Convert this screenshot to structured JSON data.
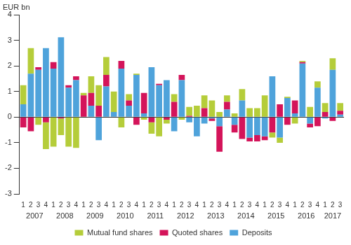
{
  "chart_data": {
    "type": "bar",
    "ylabel": "EUR bn",
    "categories": [
      "1",
      "2",
      "3",
      "4",
      "1",
      "2",
      "3",
      "4",
      "1",
      "2",
      "3",
      "4",
      "1",
      "2",
      "3",
      "4",
      "1",
      "2",
      "3",
      "4",
      "1",
      "2",
      "3",
      "4",
      "1",
      "2",
      "3",
      "4",
      "1",
      "2",
      "3",
      "4",
      "1",
      "2",
      "3",
      "4",
      "1",
      "2",
      "3",
      "4",
      "1",
      "2",
      "3"
    ],
    "groups": [
      {
        "label": "2007",
        "count": 4
      },
      {
        "label": "2008",
        "count": 4
      },
      {
        "label": "2009",
        "count": 4
      },
      {
        "label": "2010",
        "count": 4
      },
      {
        "label": "2011",
        "count": 4
      },
      {
        "label": "2012",
        "count": 4
      },
      {
        "label": "2013",
        "count": 4
      },
      {
        "label": "2014",
        "count": 4
      },
      {
        "label": "2015",
        "count": 4
      },
      {
        "label": "2016",
        "count": 4
      },
      {
        "label": "2017",
        "count": 3
      }
    ],
    "series": [
      {
        "name": "Mutual fund shares",
        "color": "#b5cd3a",
        "values": [
          0.75,
          1.0,
          -0.3,
          -1.05,
          -1.15,
          -0.65,
          -1.15,
          -1.2,
          0.1,
          0.65,
          0.8,
          0.7,
          0.8,
          -0.4,
          0.25,
          0.05,
          -0.1,
          -0.45,
          -0.75,
          -0.15,
          0.3,
          -0.1,
          0.35,
          0.45,
          0.5,
          0.65,
          0.2,
          0.25,
          0.15,
          0.45,
          0.35,
          0.35,
          0.85,
          -0.2,
          -0.2,
          0.05,
          -0.25,
          0.05,
          0.4,
          0.25,
          0.35,
          0.45,
          0.3
        ]
      },
      {
        "name": "Quoted shares",
        "color": "#d4145a",
        "values": [
          -0.4,
          -0.55,
          0.1,
          -0.2,
          0.25,
          -0.05,
          0.1,
          0.15,
          0.85,
          0.5,
          0.45,
          0.45,
          0,
          0.3,
          0.2,
          -0.3,
          0.8,
          -0.2,
          0.05,
          -0.1,
          0.6,
          0.2,
          0.05,
          0,
          0.35,
          -0.1,
          -1.0,
          0.3,
          -0.3,
          -0.85,
          -0.15,
          -0.25,
          -0.15,
          -0.6,
          0.5,
          -0.3,
          0.5,
          0.05,
          -0.15,
          -0.35,
          0.2,
          -0.15,
          0.15
        ]
      },
      {
        "name": "Deposits",
        "color": "#4fa3db",
        "values": [
          0.5,
          1.7,
          1.85,
          2.7,
          1.9,
          3.12,
          1.15,
          1.45,
          0,
          0.45,
          -0.9,
          1.2,
          0.2,
          1.9,
          0.45,
          1.65,
          0.15,
          1.95,
          1.25,
          1.45,
          -0.55,
          1.45,
          -0.2,
          -0.75,
          -0.25,
          -0.05,
          -0.35,
          0.3,
          -0.3,
          0.65,
          -0.8,
          -0.7,
          -0.75,
          1.6,
          -0.8,
          0.75,
          0.15,
          2.1,
          -0.25,
          1.15,
          -0.05,
          1.85,
          0.1
        ]
      }
    ],
    "stacked": true,
    "ylim": [
      -3,
      4
    ],
    "yticks": [
      -3,
      -2,
      -1,
      0,
      1,
      2,
      3,
      4
    ],
    "grid": false,
    "legend": "bottom"
  }
}
